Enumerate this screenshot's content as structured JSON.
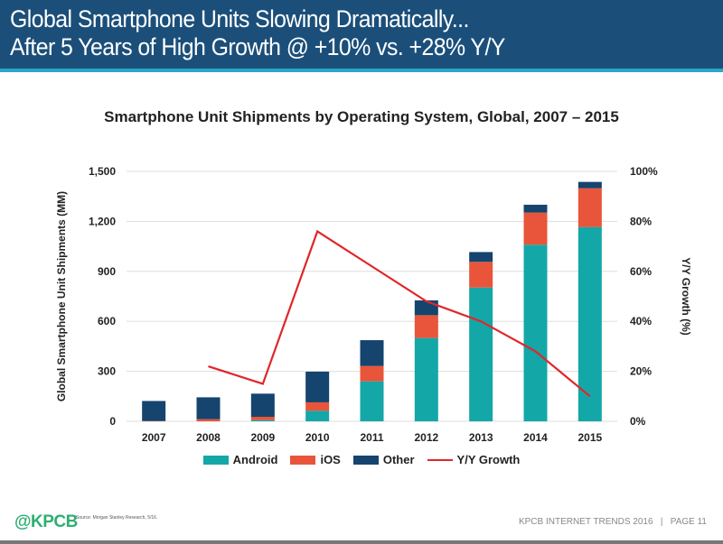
{
  "header": {
    "line1": "Global Smartphone Units Slowing Dramatically...",
    "line2": "After 5 Years of High Growth @ +10% vs. +28% Y/Y"
  },
  "chart_data": {
    "type": "bar",
    "stacked": true,
    "title": "Smartphone Unit Shipments by Operating System, Global, 2007 – 2015",
    "categories": [
      "2007",
      "2008",
      "2009",
      "2010",
      "2011",
      "2012",
      "2013",
      "2014",
      "2015"
    ],
    "ylabel": "Global Smartphone Unit Shipments (MM)",
    "ylim": [
      0,
      1500
    ],
    "yticks": [
      "0",
      "300",
      "600",
      "900",
      "1,200",
      "1,500"
    ],
    "y2label": "Y/Y Growth (%)",
    "y2lim": [
      0,
      100
    ],
    "y2ticks": [
      "0%",
      "20%",
      "40%",
      "60%",
      "80%",
      "100%"
    ],
    "grid": true,
    "legend_position": "bottom",
    "series": [
      {
        "name": "Android",
        "color": "#14a7a8",
        "values": [
          0,
          0,
          7,
          63,
          240,
          500,
          803,
          1060,
          1166
        ]
      },
      {
        "name": "iOS",
        "color": "#e8553a",
        "values": [
          2,
          13,
          20,
          51,
          92,
          137,
          154,
          193,
          233
        ]
      },
      {
        "name": "Other",
        "color": "#15446e",
        "values": [
          120,
          131,
          139,
          184,
          155,
          89,
          59,
          47,
          38
        ]
      },
      {
        "name": "Y/Y Growth",
        "type": "line",
        "axis": "right",
        "color": "#e0262a",
        "values": [
          null,
          22,
          15,
          76,
          62,
          48,
          40,
          28,
          10
        ]
      }
    ]
  },
  "footer": {
    "logo": "@KPCB",
    "source": "Source: Morgan Stanley Research, 5/16.",
    "page": "KPCB INTERNET TRENDS 2016   |   PAGE 11"
  }
}
